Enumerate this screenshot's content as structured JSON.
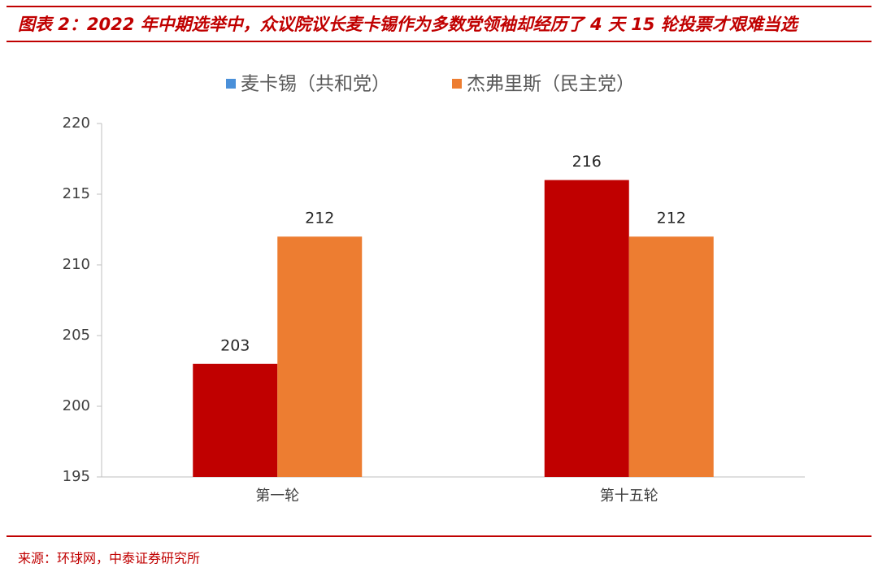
{
  "chart_data": {
    "type": "bar",
    "title": "图表 2：2022 年中期选举中，众议院议长麦卡锡作为多数党领袖却经历了 4 天 15 轮投票才艰难当选",
    "source": "来源：环球网，中泰证券研究所",
    "categories": [
      "第一轮",
      "第十五轮"
    ],
    "series": [
      {
        "name": "麦卡锡（共和党）",
        "color": "#c00000",
        "legend_color": "#4a90d9",
        "values": [
          203,
          216
        ]
      },
      {
        "name": "杰弗里斯（民主党）",
        "color": "#ed7d31",
        "legend_color": "#ed7d31",
        "values": [
          212,
          212
        ]
      }
    ],
    "ylim": [
      195,
      220
    ],
    "yticks": [
      195,
      200,
      205,
      210,
      215,
      220
    ],
    "grid": false,
    "legend": "top"
  }
}
